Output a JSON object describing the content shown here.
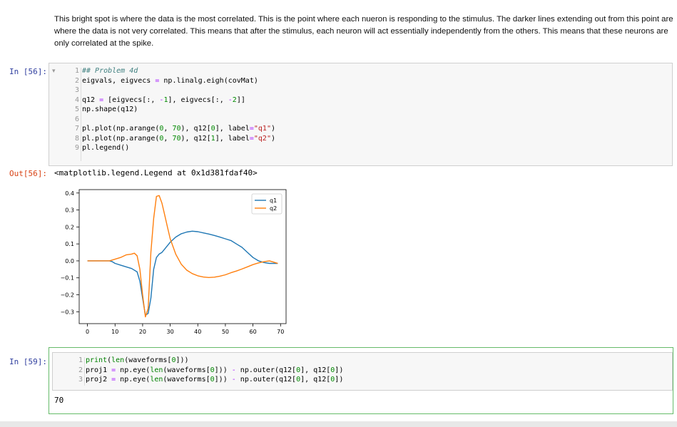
{
  "markdown": {
    "text": "This bright spot is where the data is the most correlated. This is the point where each nueron is responding to the stimulus. The darker lines extending out from this point are where the data is not very correlated. This means that after the stimulus, each neuron will act essentially independently from the others. This means that these neurons are only correlated at the spike."
  },
  "cell56": {
    "prompt_in": "In [56]:",
    "fold_marker": "▾",
    "line_numbers": [
      "1",
      "2",
      "3",
      "4",
      "5",
      "6",
      "7",
      "8",
      "9"
    ],
    "code_lines": [
      "## Problem 4d",
      "eigvals, eigvecs = np.linalg.eigh(covMat)",
      "",
      "q12 = [eigvecs[:, -1], eigvecs[:, -2]]",
      "np.shape(q12)",
      "",
      "pl.plot(np.arange(0, 70), q12[0], label=\"q1\")",
      "pl.plot(np.arange(0, 70), q12[1], label=\"q2\")",
      "pl.legend()"
    ],
    "prompt_out": "Out[56]:",
    "output_text": "<matplotlib.legend.Legend at 0x1d381fdaf40>"
  },
  "cell59": {
    "prompt_in": "In [59]:",
    "line_numbers": [
      "1",
      "2",
      "3"
    ],
    "code_lines": [
      "print(len(waveforms[0]))",
      "proj1 = np.eye(len(waveforms[0])) - np.outer(q12[0], q12[0])",
      "proj2 = np.eye(len(waveforms[0])) - np.outer(q12[0], q12[0])"
    ],
    "output_text": "70"
  },
  "chart_data": {
    "type": "line",
    "title": "",
    "xlabel": "",
    "ylabel": "",
    "xlim": [
      -3,
      72
    ],
    "ylim": [
      -0.37,
      0.42
    ],
    "xticks": [
      "0",
      "10",
      "20",
      "30",
      "40",
      "50",
      "60",
      "70"
    ],
    "yticks": [
      "0.4",
      "0.3",
      "0.2",
      "0.1",
      "0.0",
      "−0.1",
      "−0.2",
      "−0.3"
    ],
    "grid": false,
    "legend": "top-right",
    "series": [
      {
        "name": "q1",
        "color": "#1f77b4",
        "x": [
          0,
          8,
          9,
          10,
          12,
          14,
          16,
          18,
          19,
          20,
          21,
          22,
          23,
          24,
          25,
          26,
          27,
          28,
          30,
          32,
          34,
          36,
          38,
          40,
          42,
          44,
          46,
          48,
          50,
          52,
          54,
          56,
          58,
          60,
          62,
          64,
          66,
          68,
          69
        ],
        "y": [
          0.0,
          0.0,
          -0.005,
          -0.015,
          -0.025,
          -0.035,
          -0.045,
          -0.065,
          -0.12,
          -0.22,
          -0.32,
          -0.31,
          -0.22,
          -0.05,
          0.02,
          0.04,
          0.05,
          0.07,
          0.11,
          0.14,
          0.16,
          0.17,
          0.175,
          0.172,
          0.165,
          0.158,
          0.15,
          0.14,
          0.13,
          0.12,
          0.1,
          0.08,
          0.05,
          0.02,
          0.0,
          -0.01,
          -0.015,
          -0.015,
          -0.015
        ]
      },
      {
        "name": "q2",
        "color": "#ff7f0e",
        "x": [
          0,
          4,
          8,
          10,
          12,
          14,
          16,
          17,
          18,
          19,
          20,
          21,
          22,
          23,
          24,
          25,
          26,
          27,
          28,
          29,
          30,
          32,
          34,
          36,
          38,
          40,
          42,
          44,
          46,
          48,
          50,
          52,
          54,
          56,
          58,
          60,
          62,
          64,
          66,
          68,
          69
        ],
        "y": [
          0.0,
          0.0,
          0.0,
          0.01,
          0.02,
          0.035,
          0.04,
          0.045,
          0.03,
          -0.05,
          -0.2,
          -0.33,
          -0.28,
          0.05,
          0.25,
          0.38,
          0.385,
          0.34,
          0.27,
          0.2,
          0.13,
          0.04,
          -0.02,
          -0.055,
          -0.075,
          -0.088,
          -0.095,
          -0.098,
          -0.096,
          -0.09,
          -0.082,
          -0.07,
          -0.06,
          -0.048,
          -0.035,
          -0.022,
          -0.012,
          -0.005,
          0.0,
          -0.01,
          -0.015
        ]
      }
    ]
  }
}
